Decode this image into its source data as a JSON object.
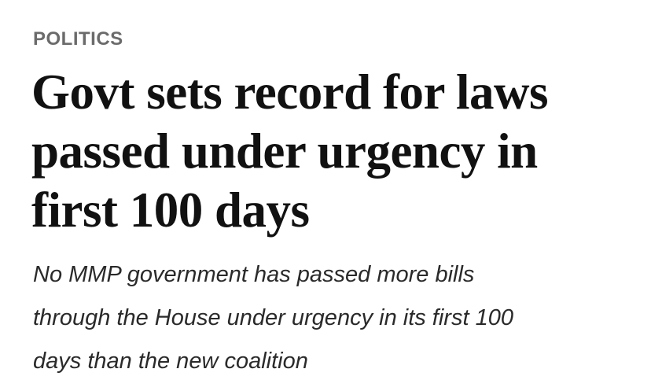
{
  "section": "POLITICS",
  "headline": {
    "lines": [
      "Govt sets record for laws",
      "passed under urgency in",
      "first 100 days"
    ]
  },
  "standfirst": {
    "lines": [
      "No MMP government has passed more bills",
      "through the House under urgency in its first 100",
      "days than the new coalition"
    ]
  }
}
